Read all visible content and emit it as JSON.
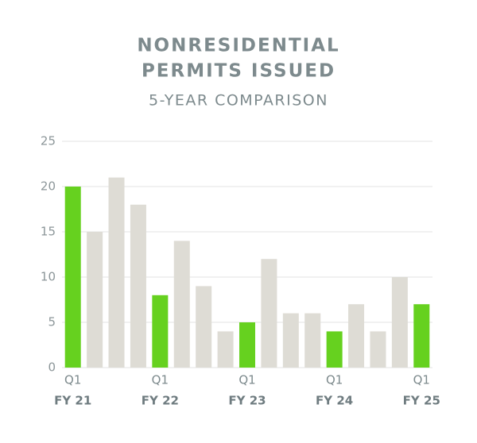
{
  "chart_data": {
    "type": "bar",
    "title": [
      "NONRESIDENTIAL",
      "PERMITS ISSUED"
    ],
    "subtitle": "5-YEAR COMPARISON",
    "categories": [
      "Q1",
      null,
      null,
      null,
      "Q1",
      null,
      null,
      null,
      "Q1",
      null,
      null,
      null,
      "Q1",
      null,
      null,
      null,
      "Q1"
    ],
    "category_groups": [
      "FY 21",
      "FY 22",
      "FY 23",
      "FY 24",
      "FY 25"
    ],
    "values": [
      20,
      15,
      21,
      18,
      8,
      14,
      9,
      4,
      5,
      12,
      6,
      6,
      4,
      7,
      4,
      10,
      7
    ],
    "colors": [
      "#66d11f",
      "#dedcd5",
      "#dedcd5",
      "#dedcd5",
      "#66d11f",
      "#dedcd5",
      "#dedcd5",
      "#dedcd5",
      "#66d11f",
      "#dedcd5",
      "#dedcd5",
      "#dedcd5",
      "#66d11f",
      "#dedcd5",
      "#dedcd5",
      "#dedcd5",
      "#66d11f"
    ],
    "ylim": [
      0,
      25
    ],
    "yticks": [
      0,
      5,
      10,
      15,
      20,
      25
    ],
    "grid": true
  }
}
